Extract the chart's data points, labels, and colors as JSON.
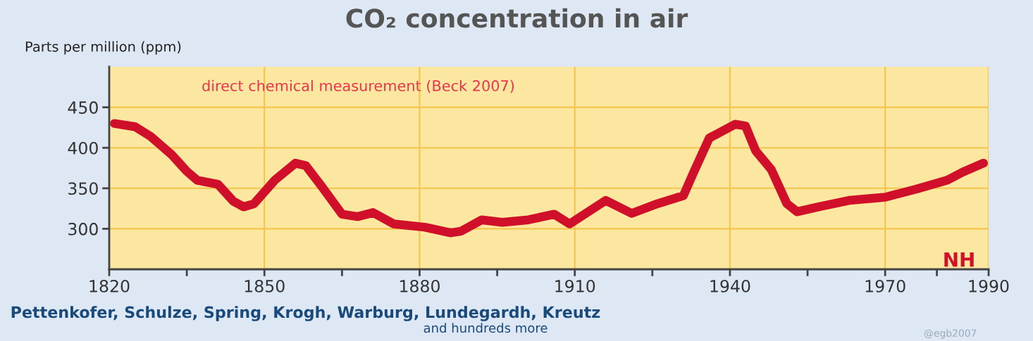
{
  "chart_data": {
    "type": "line",
    "title": "CO₂ concentration in air",
    "ylabel": "Parts per million (ppm)",
    "annotations": [
      "direct chemical measurement (Beck 2007)",
      "NH",
      "Pettenkofer, Schulze, Spring, Krogh, Warburg, Lundegardh, Kreutz",
      "and hundreds more",
      "@egb2007"
    ],
    "series": [
      {
        "color": "#d0102a",
        "x": [
          1821,
          1825,
          1828,
          1832,
          1835,
          1837,
          1841,
          1844,
          1846,
          1848,
          1852,
          1856,
          1858,
          1861,
          1865,
          1868,
          1871,
          1875,
          1881,
          1886,
          1888,
          1892,
          1896,
          1901,
          1906,
          1909,
          1916,
          1921,
          1926,
          1931,
          1933,
          1936,
          1941,
          1943,
          1945,
          1948,
          1951,
          1953,
          1957,
          1963,
          1970,
          1976,
          1982,
          1985,
          1989
        ],
        "values": [
          430,
          426,
          414,
          392,
          371,
          360,
          355,
          334,
          327,
          331,
          360,
          381,
          378,
          353,
          318,
          315,
          320,
          306,
          302,
          295,
          297,
          311,
          308,
          311,
          318,
          306,
          335,
          319,
          331,
          341,
          370,
          412,
          429,
          427,
          396,
          373,
          331,
          321,
          327,
          335,
          339,
          349,
          360,
          370,
          381
        ]
      }
    ],
    "xlim": [
      1820,
      1990
    ],
    "ylim": [
      250,
      500
    ],
    "xticks": [
      1820,
      {
        "value": 1835,
        "label": null
      },
      1850,
      {
        "value": 1865,
        "label": null
      },
      1880,
      {
        "value": 1895,
        "label": null
      },
      1910,
      {
        "value": 1925,
        "label": null
      },
      1940,
      {
        "value": 1955,
        "label": null
      },
      1970,
      {
        "value": 1980,
        "label": null
      },
      1990
    ],
    "yticks": [
      300,
      350,
      400,
      450
    ],
    "grid": true,
    "line_style": "solid",
    "marker": "none",
    "legend": false
  }
}
